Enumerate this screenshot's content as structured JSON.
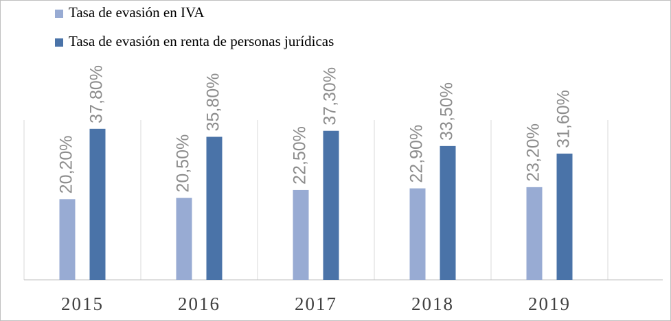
{
  "chart_data": {
    "type": "bar",
    "categories": [
      "2015",
      "2016",
      "2017",
      "2018",
      "2019"
    ],
    "series": [
      {
        "name": "Tasa de evasión en IVA",
        "color": "#98abd3",
        "values": [
          20.2,
          20.5,
          22.5,
          22.9,
          23.2
        ],
        "value_labels": [
          "20,20%",
          "20,50%",
          "22,50%",
          "22,90%",
          "23,20%"
        ]
      },
      {
        "name": "Tasa de evasión en renta de personas jurídicas",
        "color": "#4a73a8",
        "values": [
          37.8,
          35.8,
          37.3,
          33.5,
          31.6
        ],
        "value_labels": [
          "37,80%",
          "35,80%",
          "37,30%",
          "33,50%",
          "31,60%"
        ]
      }
    ],
    "ylim": [
      0,
      40
    ]
  }
}
